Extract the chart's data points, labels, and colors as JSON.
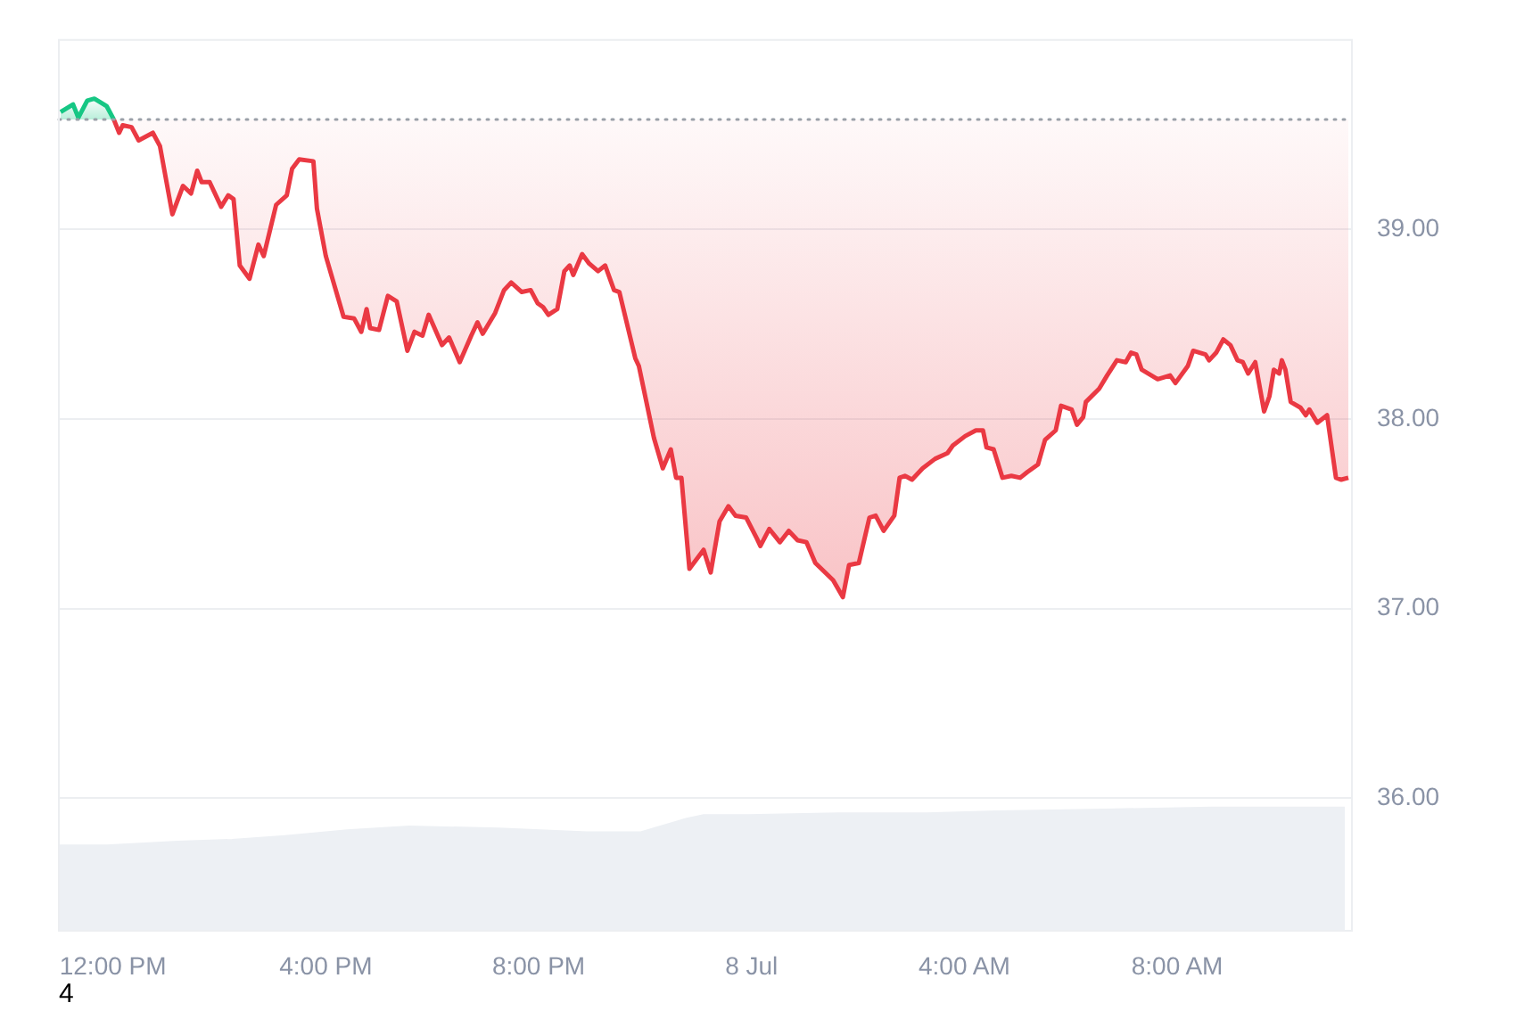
{
  "chart_data": {
    "type": "area",
    "xlim": [
      "--07-07T10:59",
      "--07-08T11:17"
    ],
    "xticks": [
      {
        "value": "--07-07T12:00",
        "label": "12:00 PM"
      },
      {
        "value": "--07-07T16:00",
        "label": "4:00 PM"
      },
      {
        "value": "--07-07T20:00",
        "label": "8:00 PM"
      },
      {
        "value": "--07-08T00:00",
        "label": "8 Jul"
      },
      {
        "value": "--07-08T04:00",
        "label": "4:00 AM"
      },
      {
        "value": "--07-08T08:00",
        "label": "8:00 AM"
      }
    ],
    "ylim": [
      35.3,
      40.0
    ],
    "yticks": [
      {
        "value": 36,
        "label": "36.00"
      },
      {
        "value": 37,
        "label": "37.00"
      },
      {
        "value": 38,
        "label": "38.00"
      },
      {
        "value": 39,
        "label": "39.00"
      }
    ],
    "grid": "y",
    "legend": false,
    "marker": "none",
    "line_style": "solid",
    "ref_lines": [
      {
        "axis": "y",
        "value": 39.58,
        "color": "#9aa0a8",
        "line_style": "dotted"
      }
    ],
    "annotations": [
      "4"
    ],
    "series": [
      {
        "color": "#edf0f4",
        "x": [
          "--07-07T10:59",
          "--07-07T11:53",
          "--07-07T13:13",
          "--07-07T14:14",
          "--07-07T15:14",
          "--07-07T16:24",
          "--07-07T17:34",
          "--07-07T19:15",
          "--07-07T20:55",
          "--07-07T21:55",
          "--07-07T22:46",
          "--07-07T23:06",
          "--07-07T23:56",
          "--07-08T01:37",
          "--07-08T03:17",
          "--07-08T04:37",
          "--07-08T06:38",
          "--07-08T08:38",
          "--07-08T10:39",
          "--07-08T11:09"
        ],
        "values": [
          35.75,
          35.75,
          35.77,
          35.78,
          35.8,
          35.83,
          35.85,
          35.84,
          35.82,
          35.82,
          35.89,
          35.91,
          35.91,
          35.92,
          35.92,
          35.93,
          35.94,
          35.95,
          35.95,
          35.95
        ]
      },
      {
        "type": "line",
        "color": "#16c784",
        "x": [
          "--07-07T11:01",
          "--07-07T11:15",
          "--07-07T11:21",
          "--07-07T11:31",
          "--07-07T11:39",
          "--07-07T11:53",
          "--07-07T12:01"
        ],
        "values": [
          39.62,
          39.66,
          39.59,
          39.68,
          39.69,
          39.65,
          39.58
        ],
        "lower": [
          39.58,
          39.58,
          39.58,
          39.58,
          39.58,
          39.58,
          39.58
        ],
        "upper": [
          39.62,
          39.66,
          39.59,
          39.68,
          39.69,
          39.65,
          39.58
        ]
      },
      {
        "type": "line",
        "color": "#ea3943",
        "x": [
          "--07-07T12:01",
          "--07-07T12:07",
          "--07-07T12:11",
          "--07-07T12:21",
          "--07-07T12:29",
          "--07-07T12:45",
          "--07-07T12:53",
          "--07-07T13:07",
          "--07-07T13:19",
          "--07-07T13:28",
          "--07-07T13:35",
          "--07-07T13:40",
          "--07-07T13:49",
          "--07-07T14:02",
          "--07-07T14:10",
          "--07-07T14:16",
          "--07-07T14:23",
          "--07-07T14:34",
          "--07-07T14:44",
          "--07-07T14:50",
          "--07-07T15:04",
          "--07-07T15:16",
          "--07-07T15:22",
          "--07-07T15:30",
          "--07-07T15:46",
          "--07-07T15:50",
          "--07-07T16:00",
          "--07-07T16:20",
          "--07-07T16:32",
          "--07-07T16:40",
          "--07-07T16:46",
          "--07-07T16:50",
          "--07-07T17:00",
          "--07-07T17:10",
          "--07-07T17:20",
          "--07-07T17:32",
          "--07-07T17:40",
          "--07-07T17:49",
          "--07-07T17:56",
          "--07-07T18:11",
          "--07-07T18:19",
          "--07-07T18:31",
          "--07-07T18:44",
          "--07-07T18:51",
          "--07-07T18:57",
          "--07-07T19:11",
          "--07-07T19:21",
          "--07-07T19:29",
          "--07-07T19:41",
          "--07-07T19:51",
          "--07-07T19:59",
          "--07-07T20:05",
          "--07-07T20:11",
          "--07-07T20:21",
          "--07-07T20:29",
          "--07-07T20:35",
          "--07-07T20:39",
          "--07-07T20:49",
          "--07-07T20:57",
          "--07-07T21:07",
          "--07-07T21:15",
          "--07-07T21:25",
          "--07-07T21:31",
          "--07-07T21:49",
          "--07-07T21:53",
          "--07-07T22:10",
          "--07-07T22:20",
          "--07-07T22:29",
          "--07-07T22:35",
          "--07-07T22:41",
          "--07-07T22:50",
          "--07-07T23:06",
          "--07-07T23:14",
          "--07-07T23:24",
          "--07-07T23:34",
          "--07-07T23:42",
          "--07-07T23:54",
          "--07-08T00:06",
          "--07-08T00:10",
          "--07-08T00:20",
          "--07-08T00:32",
          "--07-08T00:42",
          "--07-08T00:52",
          "--07-08T01:02",
          "--07-08T01:12",
          "--07-08T01:32",
          "--07-08T01:43",
          "--07-08T01:50",
          "--07-08T02:01",
          "--07-08T02:13",
          "--07-08T02:20",
          "--07-08T02:29",
          "--07-08T02:41",
          "--07-08T02:47",
          "--07-08T02:53",
          "--07-08T03:01",
          "--07-08T03:13",
          "--07-08T03:27",
          "--07-08T03:41",
          "--07-08T03:47",
          "--07-08T04:01",
          "--07-08T04:13",
          "--07-08T04:21",
          "--07-08T04:25",
          "--07-08T04:33",
          "--07-08T04:43",
          "--07-08T04:53",
          "--07-08T05:03",
          "--07-08T05:11",
          "--07-08T05:23",
          "--07-08T05:31",
          "--07-08T05:43",
          "--07-08T05:49",
          "--07-08T06:01",
          "--07-08T06:07",
          "--07-08T06:14",
          "--07-08T06:17",
          "--07-08T06:32",
          "--07-08T06:41",
          "--07-08T06:52",
          "--07-08T07:02",
          "--07-08T07:08",
          "--07-08T07:14",
          "--07-08T07:20",
          "--07-08T07:38",
          "--07-08T07:52",
          "--07-08T07:58",
          "--07-08T08:12",
          "--07-08T08:18",
          "--07-08T08:32",
          "--07-08T08:36",
          "--07-08T08:44",
          "--07-08T08:52",
          "--07-08T09:00",
          "--07-08T09:08",
          "--07-08T09:14",
          "--07-08T09:20",
          "--07-08T09:28",
          "--07-08T09:38",
          "--07-08T09:44",
          "--07-08T09:49",
          "--07-08T09:55",
          "--07-08T09:58",
          "--07-08T10:02",
          "--07-08T10:08",
          "--07-08T10:19",
          "--07-08T10:25",
          "--07-08T10:29",
          "--07-08T10:38",
          "--07-08T10:49",
          "--07-08T10:59",
          "--07-08T11:05",
          "--07-08T11:13"
        ],
        "values": [
          39.58,
          39.51,
          39.55,
          39.54,
          39.47,
          39.51,
          39.44,
          39.08,
          39.23,
          39.19,
          39.31,
          39.25,
          39.25,
          39.12,
          39.18,
          39.16,
          38.81,
          38.74,
          38.92,
          38.86,
          39.13,
          39.18,
          39.32,
          39.37,
          39.36,
          39.11,
          38.86,
          38.54,
          38.53,
          38.46,
          38.58,
          38.48,
          38.47,
          38.65,
          38.62,
          38.36,
          38.46,
          38.44,
          38.55,
          38.39,
          38.43,
          38.3,
          38.44,
          38.51,
          38.45,
          38.56,
          38.68,
          38.72,
          38.67,
          38.68,
          38.61,
          38.59,
          38.55,
          38.58,
          38.78,
          38.81,
          38.76,
          38.87,
          38.82,
          38.78,
          38.81,
          38.68,
          38.67,
          38.32,
          38.28,
          37.9,
          37.74,
          37.84,
          37.69,
          37.69,
          37.21,
          37.31,
          37.19,
          37.46,
          37.54,
          37.49,
          37.48,
          37.37,
          37.33,
          37.42,
          37.35,
          37.41,
          37.36,
          37.35,
          37.24,
          37.15,
          37.06,
          37.23,
          37.24,
          37.48,
          37.49,
          37.41,
          37.49,
          37.69,
          37.7,
          37.68,
          37.74,
          37.79,
          37.82,
          37.86,
          37.91,
          37.94,
          37.94,
          37.85,
          37.84,
          37.69,
          37.7,
          37.69,
          37.72,
          37.76,
          37.89,
          37.94,
          38.07,
          38.05,
          37.97,
          38.01,
          38.09,
          38.16,
          38.23,
          38.31,
          38.3,
          38.35,
          38.34,
          38.26,
          38.21,
          38.23,
          38.19,
          38.28,
          38.36,
          38.34,
          38.31,
          38.35,
          38.42,
          38.39,
          38.31,
          38.3,
          38.24,
          38.3,
          38.04,
          38.12,
          38.26,
          38.24,
          38.31,
          38.26,
          38.09,
          38.06,
          38.02,
          38.05,
          37.98,
          38.02,
          37.69,
          37.68,
          37.69
        ],
        "lower": [
          39.58,
          39.51,
          39.55,
          39.54,
          39.47,
          39.51,
          39.44,
          39.08,
          39.23,
          39.19,
          39.31,
          39.25,
          39.25,
          39.12,
          39.18,
          39.16,
          38.81,
          38.74,
          38.92,
          38.86,
          39.13,
          39.18,
          39.32,
          39.37,
          39.36,
          39.11,
          38.86,
          38.54,
          38.53,
          38.46,
          38.58,
          38.48,
          38.47,
          38.65,
          38.62,
          38.36,
          38.46,
          38.44,
          38.55,
          38.39,
          38.43,
          38.3,
          38.44,
          38.51,
          38.45,
          38.56,
          38.68,
          38.72,
          38.67,
          38.68,
          38.61,
          38.59,
          38.55,
          38.58,
          38.78,
          38.81,
          38.76,
          38.87,
          38.82,
          38.78,
          38.81,
          38.68,
          38.67,
          38.32,
          38.28,
          37.9,
          37.74,
          37.84,
          37.69,
          37.69,
          37.21,
          37.31,
          37.19,
          37.46,
          37.54,
          37.49,
          37.48,
          37.37,
          37.33,
          37.42,
          37.35,
          37.41,
          37.36,
          37.35,
          37.24,
          37.15,
          37.06,
          37.23,
          37.24,
          37.48,
          37.49,
          37.41,
          37.49,
          37.69,
          37.7,
          37.68,
          37.74,
          37.79,
          37.82,
          37.86,
          37.91,
          37.94,
          37.94,
          37.85,
          37.84,
          37.69,
          37.7,
          37.69,
          37.72,
          37.76,
          37.89,
          37.94,
          38.07,
          38.05,
          37.97,
          38.01,
          38.09,
          38.16,
          38.23,
          38.31,
          38.3,
          38.35,
          38.34,
          38.26,
          38.21,
          38.23,
          38.19,
          38.28,
          38.36,
          38.34,
          38.31,
          38.35,
          38.42,
          38.39,
          38.31,
          38.3,
          38.24,
          38.3,
          38.04,
          38.12,
          38.26,
          38.24,
          38.31,
          38.26,
          38.09,
          38.06,
          38.02,
          38.05,
          37.98,
          38.02,
          37.69,
          37.68,
          37.69
        ],
        "upper": [
          39.58,
          39.58,
          39.58,
          39.58,
          39.58,
          39.58,
          39.58,
          39.58,
          39.58,
          39.58,
          39.58,
          39.58,
          39.58,
          39.58,
          39.58,
          39.58,
          39.58,
          39.58,
          39.58,
          39.58,
          39.58,
          39.58,
          39.58,
          39.58,
          39.58,
          39.58,
          39.58,
          39.58,
          39.58,
          39.58,
          39.58,
          39.58,
          39.58,
          39.58,
          39.58,
          39.58,
          39.58,
          39.58,
          39.58,
          39.58,
          39.58,
          39.58,
          39.58,
          39.58,
          39.58,
          39.58,
          39.58,
          39.58,
          39.58,
          39.58,
          39.58,
          39.58,
          39.58,
          39.58,
          39.58,
          39.58,
          39.58,
          39.58,
          39.58,
          39.58,
          39.58,
          39.58,
          39.58,
          39.58,
          39.58,
          39.58,
          39.58,
          39.58,
          39.58,
          39.58,
          39.58,
          39.58,
          39.58,
          39.58,
          39.58,
          39.58,
          39.58,
          39.58,
          39.58,
          39.58,
          39.58,
          39.58,
          39.58,
          39.58,
          39.58,
          39.58,
          39.58,
          39.58,
          39.58,
          39.58,
          39.58,
          39.58,
          39.58,
          39.58,
          39.58,
          39.58,
          39.58,
          39.58,
          39.58,
          39.58,
          39.58,
          39.58,
          39.58,
          39.58,
          39.58,
          39.58,
          39.58,
          39.58,
          39.58,
          39.58,
          39.58,
          39.58,
          39.58,
          39.58,
          39.58,
          39.58,
          39.58,
          39.58,
          39.58,
          39.58,
          39.58,
          39.58,
          39.58,
          39.58,
          39.58,
          39.58,
          39.58,
          39.58,
          39.58,
          39.58,
          39.58,
          39.58,
          39.58,
          39.58,
          39.58,
          39.58,
          39.58,
          39.58,
          39.58,
          39.58,
          39.58,
          39.58,
          39.58,
          39.58,
          39.58,
          39.58,
          39.58,
          39.58,
          39.58,
          39.58,
          39.58,
          39.58,
          39.58
        ]
      }
    ]
  }
}
